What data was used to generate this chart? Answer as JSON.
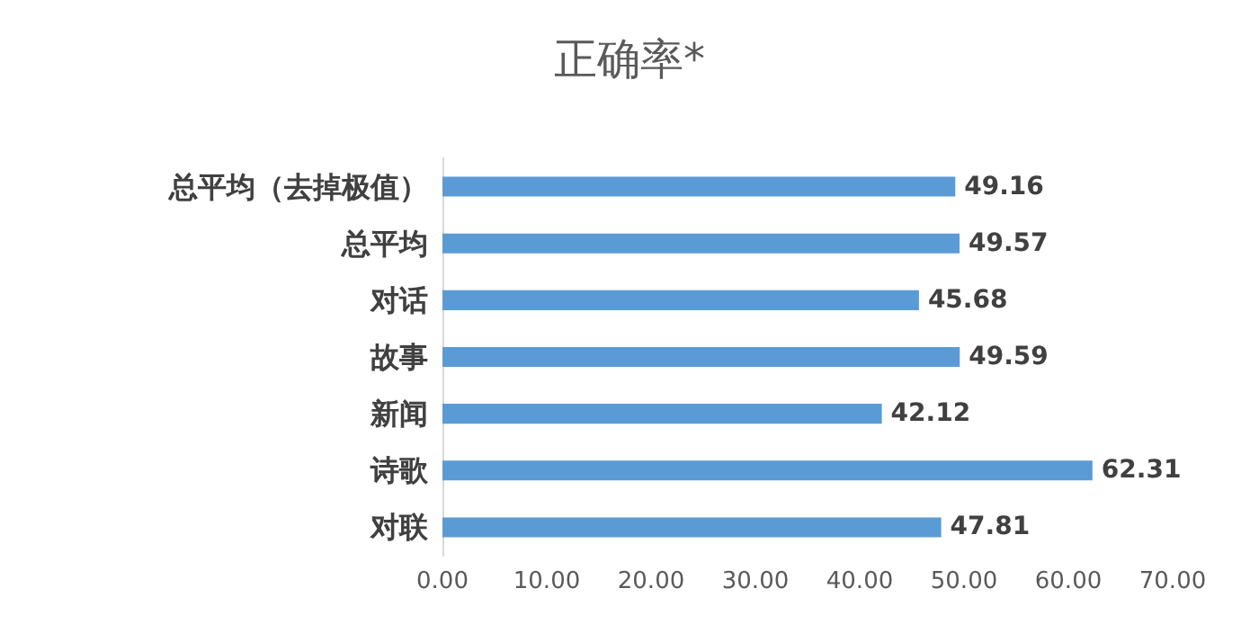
{
  "chart_data": {
    "type": "bar",
    "orientation": "horizontal",
    "title": "正确率*",
    "categories": [
      "总平均（去掉极值）",
      "总平均",
      "对话",
      "故事",
      "新闻",
      "诗歌",
      "对联"
    ],
    "values": [
      49.16,
      49.57,
      45.68,
      49.59,
      42.12,
      62.31,
      47.81
    ],
    "color": "#5b9bd5",
    "xlim": [
      0,
      70
    ],
    "xticks": [
      {
        "value": 0,
        "label": "0.00"
      },
      {
        "value": 10,
        "label": "10.00"
      },
      {
        "value": 20,
        "label": "20.00"
      },
      {
        "value": 30,
        "label": "30.00"
      },
      {
        "value": 40,
        "label": "40.00"
      },
      {
        "value": 50,
        "label": "50.00"
      },
      {
        "value": 60,
        "label": "60.00"
      },
      {
        "value": 70,
        "label": "70.00"
      }
    ],
    "data_labels": true,
    "grid": false
  }
}
